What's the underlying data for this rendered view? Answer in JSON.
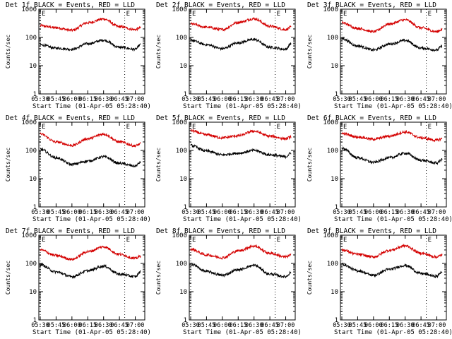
{
  "colors": {
    "background": "#ffffff",
    "events": "#000000",
    "lld": "#d40000",
    "axis": "#000000"
  },
  "chart_data": [
    {
      "type": "line",
      "title": "Det 1f BLACK = Events, RED = LLD",
      "xlabel": "Start Time (01-Apr-05 05:28:40)",
      "ylabel": "Counts/sec",
      "x_ticks": [
        "05:30",
        "05:45",
        "06:00",
        "06:15",
        "06:30",
        "06:45",
        "07:00"
      ],
      "y_ticks": [
        "1",
        "10",
        "100",
        "1000"
      ],
      "ylim": [
        1,
        1000
      ],
      "y_scale": "log",
      "markers": [
        {
          "label": "E",
          "time": "05:30"
        },
        {
          "label": "E",
          "time": "06:50"
        }
      ],
      "series": [
        {
          "color": "lld",
          "x": [
            "05:30",
            "05:45",
            "06:00",
            "06:15",
            "06:30",
            "06:45",
            "07:00",
            "07:05"
          ],
          "values": [
            260,
            220,
            180,
            330,
            450,
            240,
            190,
            220
          ]
        },
        {
          "color": "events",
          "x": [
            "05:30",
            "05:45",
            "06:00",
            "06:15",
            "06:30",
            "06:45",
            "07:00",
            "07:05"
          ],
          "values": [
            55,
            42,
            38,
            60,
            80,
            45,
            38,
            55
          ]
        }
      ]
    },
    {
      "type": "line",
      "title": "Det 2f BLACK = Events, RED = LLD",
      "xlabel": "Start Time (01-Apr-05 05:28:40)",
      "ylabel": "Counts/sec",
      "x_ticks": [
        "05:30",
        "05:45",
        "06:00",
        "06:15",
        "06:30",
        "06:45",
        "07:00"
      ],
      "y_ticks": [
        "1",
        "10",
        "100",
        "1000"
      ],
      "ylim": [
        1,
        1000
      ],
      "y_scale": "log",
      "markers": [
        {
          "label": "E",
          "time": "05:30"
        },
        {
          "label": "E",
          "time": "06:50"
        }
      ],
      "series": [
        {
          "color": "lld",
          "x": [
            "05:30",
            "05:45",
            "06:00",
            "06:15",
            "06:30",
            "06:45",
            "07:00",
            "07:05"
          ],
          "values": [
            300,
            230,
            190,
            340,
            460,
            250,
            190,
            230
          ]
        },
        {
          "color": "events",
          "x": [
            "05:30",
            "05:45",
            "06:00",
            "06:15",
            "06:30",
            "06:45",
            "07:00",
            "07:05"
          ],
          "values": [
            80,
            55,
            40,
            65,
            85,
            45,
            38,
            60
          ]
        }
      ]
    },
    {
      "type": "line",
      "title": "Det 3f BLACK = Events, RED = LLD",
      "xlabel": "Start Time (01-Apr-05 05:28:40)",
      "ylabel": "Counts/sec",
      "x_ticks": [
        "05:30",
        "05:45",
        "06:00",
        "06:15",
        "06:30",
        "06:45",
        "07:00"
      ],
      "y_ticks": [
        "1",
        "10",
        "100",
        "1000"
      ],
      "ylim": [
        1,
        1000
      ],
      "y_scale": "log",
      "markers": [
        {
          "label": "E",
          "time": "05:30"
        },
        {
          "label": "E",
          "time": "06:50"
        }
      ],
      "series": [
        {
          "color": "lld",
          "x": [
            "05:30",
            "05:45",
            "06:00",
            "06:15",
            "06:30",
            "06:45",
            "07:00",
            "07:05"
          ],
          "values": [
            330,
            210,
            160,
            300,
            420,
            220,
            160,
            190
          ]
        },
        {
          "color": "events",
          "x": [
            "05:30",
            "05:45",
            "06:00",
            "06:15",
            "06:30",
            "06:45",
            "07:00",
            "07:05"
          ],
          "values": [
            90,
            50,
            36,
            58,
            78,
            42,
            36,
            50
          ]
        }
      ]
    },
    {
      "type": "line",
      "title": "Det 4f BLACK = Events, RED = LLD",
      "xlabel": "Start Time (01-Apr-05 05:28:40)",
      "ylabel": "Counts/sec",
      "x_ticks": [
        "05:30",
        "05:45",
        "06:00",
        "06:15",
        "06:30",
        "06:45",
        "07:00"
      ],
      "y_ticks": [
        "1",
        "10",
        "100",
        "1000"
      ],
      "ylim": [
        1,
        1000
      ],
      "y_scale": "log",
      "markers": [
        {
          "label": "E",
          "time": "05:30"
        },
        {
          "label": "E",
          "time": "06:50"
        }
      ],
      "series": [
        {
          "color": "lld",
          "x": [
            "05:30",
            "05:45",
            "06:00",
            "06:15",
            "06:30",
            "06:45",
            "07:00",
            "07:05"
          ],
          "values": [
            380,
            200,
            150,
            260,
            380,
            200,
            145,
            170
          ]
        },
        {
          "color": "events",
          "x": [
            "05:30",
            "05:45",
            "06:00",
            "06:15",
            "06:30",
            "06:45",
            "07:00",
            "07:05"
          ],
          "values": [
            110,
            55,
            32,
            42,
            60,
            35,
            28,
            38
          ]
        }
      ]
    },
    {
      "type": "line",
      "title": "Det 5f BLACK = Events, RED = LLD",
      "xlabel": "Start Time (01-Apr-05 05:28:40)",
      "ylabel": "Counts/sec",
      "x_ticks": [
        "05:30",
        "05:45",
        "06:00",
        "06:15",
        "06:30",
        "06:45",
        "07:00"
      ],
      "y_ticks": [
        "1",
        "10",
        "100",
        "1000"
      ],
      "ylim": [
        1,
        1000
      ],
      "y_scale": "log",
      "markers": [
        {
          "label": "E",
          "time": "05:30"
        },
        {
          "label": "E",
          "time": "06:50"
        }
      ],
      "series": [
        {
          "color": "lld",
          "x": [
            "05:30",
            "05:45",
            "06:00",
            "06:15",
            "06:30",
            "06:45",
            "07:00",
            "07:05"
          ],
          "values": [
            500,
            360,
            280,
            330,
            480,
            320,
            260,
            300
          ]
        },
        {
          "color": "events",
          "x": [
            "05:30",
            "05:45",
            "06:00",
            "06:15",
            "06:30",
            "06:45",
            "07:00",
            "07:05"
          ],
          "values": [
            150,
            95,
            70,
            80,
            100,
            70,
            60,
            80
          ]
        }
      ]
    },
    {
      "type": "line",
      "title": "Det 6f BLACK = Events, RED = LLD",
      "xlabel": "Start Time (01-Apr-05 05:28:40)",
      "ylabel": "Counts/sec",
      "x_ticks": [
        "05:30",
        "05:45",
        "06:00",
        "06:15",
        "06:30",
        "06:45",
        "07:00"
      ],
      "y_ticks": [
        "1",
        "10",
        "100",
        "1000"
      ],
      "ylim": [
        1,
        1000
      ],
      "y_scale": "log",
      "markers": [
        {
          "label": "E",
          "time": "05:30"
        },
        {
          "label": "E",
          "time": "06:50"
        }
      ],
      "series": [
        {
          "color": "lld",
          "x": [
            "05:30",
            "05:45",
            "06:00",
            "06:15",
            "06:30",
            "06:45",
            "07:00",
            "07:05"
          ],
          "values": [
            400,
            300,
            250,
            320,
            450,
            280,
            230,
            260
          ]
        },
        {
          "color": "events",
          "x": [
            "05:30",
            "05:45",
            "06:00",
            "06:15",
            "06:30",
            "06:45",
            "07:00",
            "07:05"
          ],
          "values": [
            120,
            55,
            38,
            55,
            80,
            45,
            36,
            48
          ]
        }
      ]
    },
    {
      "type": "line",
      "title": "Det 7f BLACK = Events, RED = LLD",
      "xlabel": "Start Time (01-Apr-05 05:28:40)",
      "ylabel": "Counts/sec",
      "x_ticks": [
        "05:30",
        "05:45",
        "06:00",
        "06:15",
        "06:30",
        "06:45",
        "07:00"
      ],
      "y_ticks": [
        "1",
        "10",
        "100",
        "1000"
      ],
      "ylim": [
        1,
        1000
      ],
      "y_scale": "log",
      "markers": [
        {
          "label": "E",
          "time": "05:30"
        },
        {
          "label": "E",
          "time": "06:50"
        }
      ],
      "series": [
        {
          "color": "lld",
          "x": [
            "05:30",
            "05:45",
            "06:00",
            "06:15",
            "06:30",
            "06:45",
            "07:00",
            "07:05"
          ],
          "values": [
            300,
            190,
            140,
            260,
            390,
            210,
            150,
            180
          ]
        },
        {
          "color": "events",
          "x": [
            "05:30",
            "05:45",
            "06:00",
            "06:15",
            "06:30",
            "06:45",
            "07:00",
            "07:05"
          ],
          "values": [
            90,
            50,
            34,
            55,
            80,
            42,
            34,
            50
          ]
        }
      ]
    },
    {
      "type": "line",
      "title": "Det 8f BLACK = Events, RED = LLD",
      "xlabel": "Start Time (01-Apr-05 05:28:40)",
      "ylabel": "Counts/sec",
      "x_ticks": [
        "05:30",
        "05:45",
        "06:00",
        "06:15",
        "06:30",
        "06:45",
        "07:00"
      ],
      "y_ticks": [
        "1",
        "10",
        "100",
        "1000"
      ],
      "ylim": [
        1,
        1000
      ],
      "y_scale": "log",
      "markers": [
        {
          "label": "E",
          "time": "05:30"
        },
        {
          "label": "E",
          "time": "06:50"
        }
      ],
      "series": [
        {
          "color": "lld",
          "x": [
            "05:30",
            "05:45",
            "06:00",
            "06:15",
            "06:30",
            "06:45",
            "07:00",
            "07:05"
          ],
          "values": [
            320,
            200,
            160,
            280,
            410,
            230,
            170,
            200
          ]
        },
        {
          "color": "events",
          "x": [
            "05:30",
            "05:45",
            "06:00",
            "06:15",
            "06:30",
            "06:45",
            "07:00",
            "07:05"
          ],
          "values": [
            95,
            52,
            38,
            60,
            85,
            42,
            34,
            48
          ]
        }
      ]
    },
    {
      "type": "line",
      "title": "Det 9f BLACK = Events, RED = LLD",
      "xlabel": "Start Time (01-Apr-05 05:28:40)",
      "ylabel": "Counts/sec",
      "x_ticks": [
        "05:30",
        "05:45",
        "06:00",
        "06:15",
        "06:30",
        "06:45",
        "07:00"
      ],
      "y_ticks": [
        "1",
        "10",
        "100",
        "1000"
      ],
      "ylim": [
        1,
        1000
      ],
      "y_scale": "log",
      "markers": [
        {
          "label": "E",
          "time": "05:30"
        },
        {
          "label": "E",
          "time": "06:50"
        }
      ],
      "series": [
        {
          "color": "lld",
          "x": [
            "05:30",
            "05:45",
            "06:00",
            "06:15",
            "06:30",
            "06:45",
            "07:00",
            "07:05"
          ],
          "values": [
            300,
            210,
            170,
            290,
            420,
            230,
            170,
            200
          ]
        },
        {
          "color": "events",
          "x": [
            "05:30",
            "05:45",
            "06:00",
            "06:15",
            "06:30",
            "06:45",
            "07:00",
            "07:05"
          ],
          "values": [
            95,
            55,
            38,
            62,
            85,
            44,
            35,
            52
          ]
        }
      ]
    }
  ]
}
